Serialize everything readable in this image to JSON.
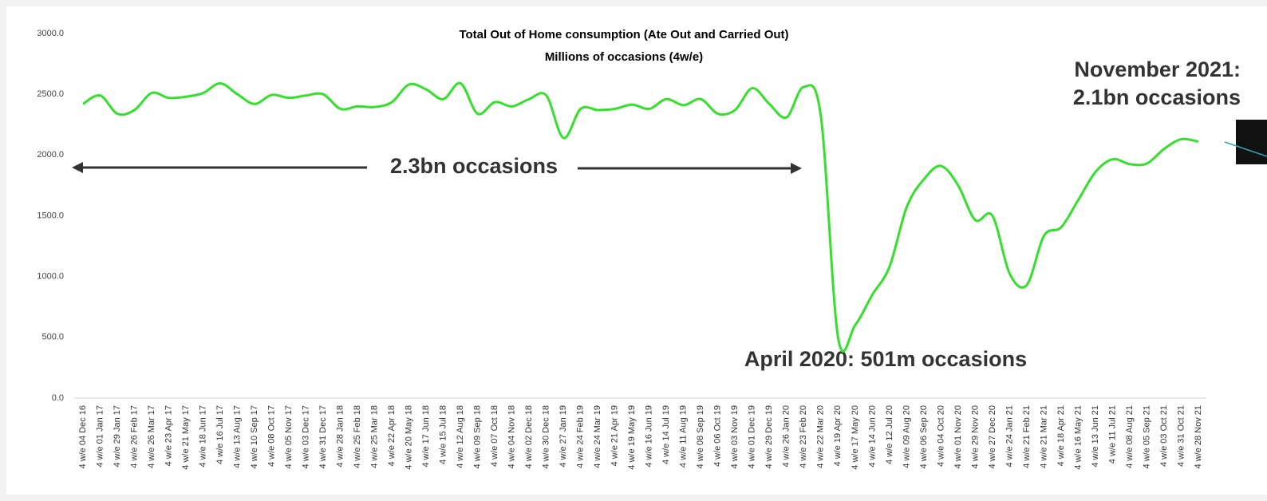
{
  "chart_data": {
    "type": "line",
    "title": "Total Out of Home consumption (Ate Out and Carried Out)",
    "subtitle": "Millions of occasions (4w/e)",
    "annotations": [
      "2.3bn occasions",
      "April 2020: 501m occasions",
      "November 2021:",
      "2.1bn occasions"
    ],
    "categories": [
      "4 w/e 04 Dec 16",
      "4 w/e 01 Jan 17",
      "4 w/e 29 Jan 17",
      "4 w/e 26 Feb 17",
      "4 w/e 26 Mar 17",
      "4 w/e 23 Apr 17",
      "4 w/e 21 May 17",
      "4 w/e 18 Jun 17",
      "4 w/e 16 Jul 17",
      "4 w/e 13 Aug 17",
      "4 w/e 10 Sep 17",
      "4 w/e 08 Oct 17",
      "4 w/e 05 Nov 17",
      "4 w/e 03 Dec 17",
      "4 w/e 31 Dec 17",
      "4 w/e 28 Jan 18",
      "4 w/e 25 Feb 18",
      "4 w/e 25 Mar 18",
      "4 w/e 22 Apr 18",
      "4 w/e 20 May 18",
      "4 w/e 17 Jun 18",
      "4 w/e 15 Jul 18",
      "4 w/e 12 Aug 18",
      "4 w/e 09 Sep 18",
      "4 w/e 07 Oct 18",
      "4 w/e 04 Nov 18",
      "4 w/e 02 Dec 18",
      "4 w/e 30 Dec 18",
      "4 w/e 27 Jan 19",
      "4 w/e 24 Feb 19",
      "4 w/e 24 Mar 19",
      "4 w/e 21 Apr 19",
      "4 w/e 19 May 19",
      "4 w/e 16 Jun 19",
      "4 w/e 14 Jul 19",
      "4 w/e 11 Aug 19",
      "4 w/e 08 Sep 19",
      "4 w/e 06 Oct 19",
      "4 w/e 03 Nov 19",
      "4 w/e 01 Dec 19",
      "4 w/e 29 Dec 19",
      "4 w/e 26 Jan 20",
      "4 w/e 23 Feb 20",
      "4 w/e 22 Mar 20",
      "4 w/e 19 Apr 20",
      "4 w/e 17 May 20",
      "4 w/e 14 Jun 20",
      "4 w/e 12 Jul 20",
      "4 w/e 09 Aug 20",
      "4 w/e 06 Sep 20",
      "4 w/e 04 Oct 20",
      "4 w/e 01 Nov 20",
      "4 w/e 29 Nov 20",
      "4 w/e 27 Dec 20",
      "4 w/e 24 Jan 21",
      "4 w/e 21 Feb 21",
      "4 w/e 21 Mar 21",
      "4 w/e 18 Apr 21",
      "4 w/e 16 May 21",
      "4 w/e 13 Jun 21",
      "4 w/e 11 Jul 21",
      "4 w/e 08 Aug 21",
      "4 w/e 05 Sep 21",
      "4 w/e 03 Oct 21",
      "4 w/e 31 Oct 21",
      "4 w/e 28 Nov 21"
    ],
    "values": [
      2420,
      2490,
      2340,
      2370,
      2510,
      2470,
      2480,
      2510,
      2590,
      2500,
      2420,
      2495,
      2470,
      2490,
      2500,
      2380,
      2400,
      2395,
      2435,
      2580,
      2540,
      2460,
      2590,
      2340,
      2435,
      2400,
      2460,
      2490,
      2140,
      2380,
      2370,
      2380,
      2415,
      2380,
      2460,
      2410,
      2460,
      2340,
      2370,
      2550,
      2420,
      2310,
      2560,
      2320,
      501,
      600,
      850,
      1080,
      1570,
      1800,
      1910,
      1750,
      1465,
      1500,
      1025,
      930,
      1335,
      1405,
      1630,
      1860,
      1965,
      1925,
      1930,
      2050,
      2130,
      2110
    ],
    "color": "#33e02a",
    "ylim": [
      0,
      3000
    ],
    "yticks": [
      {
        "value": 0,
        "label": "0.0"
      },
      {
        "value": 500,
        "label": "500.0"
      },
      {
        "value": 1000,
        "label": "1000.0"
      },
      {
        "value": 1500,
        "label": "1500.0"
      },
      {
        "value": 2000,
        "label": "2000.0"
      },
      {
        "value": 2500,
        "label": "2500.0"
      },
      {
        "value": 3000,
        "label": "3000.0"
      }
    ],
    "grid": false
  }
}
